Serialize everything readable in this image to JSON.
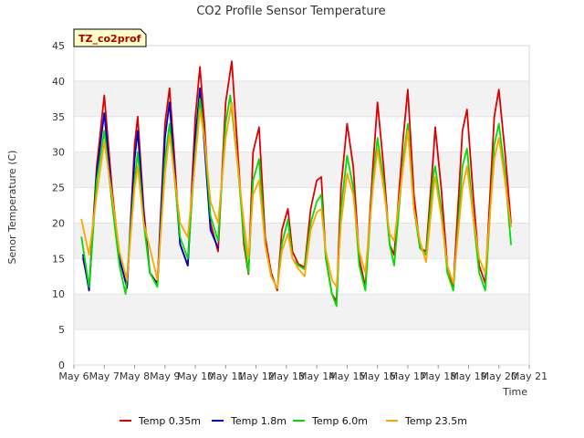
{
  "chart_data": {
    "type": "line",
    "title": "CO2 Profile Sensor Temperature",
    "xlabel": "Time",
    "ylabel": "Senor Temperature (C)",
    "annotation": "TZ_co2prof",
    "xlim": [
      6,
      21
    ],
    "ylim": [
      0,
      45
    ],
    "x_ticks": [
      6,
      7,
      8,
      9,
      10,
      11,
      12,
      13,
      14,
      15,
      16,
      17,
      18,
      19,
      20,
      21
    ],
    "x_tick_labels": [
      "May 6",
      "May 7",
      "May 8",
      "May 9",
      "May 10",
      "May 11",
      "May 12",
      "May 13",
      "May 14",
      "May 15",
      "May 16",
      "May 17",
      "May 18",
      "May 19",
      "May 20",
      "May 21"
    ],
    "y_ticks": [
      0,
      5,
      10,
      15,
      20,
      25,
      30,
      35,
      40,
      45
    ],
    "y_tick_labels": [
      "0",
      "5",
      "10",
      "15",
      "20",
      "25",
      "30",
      "35",
      "40",
      "45"
    ],
    "grid": "horizontal bands",
    "legend_position": "bottom",
    "series": [
      {
        "name": "Temp 0.35m",
        "color": "#dd0000",
        "points": [
          [
            6.3,
            15.0
          ],
          [
            6.5,
            10.8
          ],
          [
            6.75,
            28
          ],
          [
            7.0,
            38.0
          ],
          [
            7.25,
            25
          ],
          [
            7.5,
            15
          ],
          [
            7.75,
            10.8
          ],
          [
            8.0,
            31
          ],
          [
            8.1,
            35.0
          ],
          [
            8.3,
            22
          ],
          [
            8.5,
            13
          ],
          [
            8.75,
            11.5
          ],
          [
            9.0,
            34
          ],
          [
            9.15,
            39.0
          ],
          [
            9.3,
            30
          ],
          [
            9.5,
            17
          ],
          [
            9.75,
            14.0
          ],
          [
            10.0,
            35
          ],
          [
            10.15,
            42.0
          ],
          [
            10.3,
            34
          ],
          [
            10.5,
            20
          ],
          [
            10.75,
            16.0
          ],
          [
            11.0,
            37
          ],
          [
            11.2,
            42.8
          ],
          [
            11.4,
            30
          ],
          [
            11.6,
            17
          ],
          [
            11.75,
            12.8
          ],
          [
            11.9,
            30
          ],
          [
            12.1,
            33.5
          ],
          [
            12.3,
            18
          ],
          [
            12.5,
            13
          ],
          [
            12.7,
            10.5
          ],
          [
            12.85,
            19
          ],
          [
            13.05,
            22
          ],
          [
            13.2,
            16
          ],
          [
            13.4,
            14.2
          ],
          [
            13.6,
            13.8
          ],
          [
            13.8,
            22
          ],
          [
            14.0,
            26
          ],
          [
            14.15,
            26.5
          ],
          [
            14.3,
            15
          ],
          [
            14.5,
            10
          ],
          [
            14.65,
            9.0
          ],
          [
            14.8,
            25
          ],
          [
            15.0,
            34.0
          ],
          [
            15.2,
            28
          ],
          [
            15.4,
            15
          ],
          [
            15.6,
            11.0
          ],
          [
            15.85,
            28
          ],
          [
            16.0,
            37.0
          ],
          [
            16.2,
            28
          ],
          [
            16.4,
            17
          ],
          [
            16.55,
            15.5
          ],
          [
            16.85,
            32
          ],
          [
            17.0,
            38.8
          ],
          [
            17.2,
            24
          ],
          [
            17.4,
            16.5
          ],
          [
            17.6,
            16.0
          ],
          [
            17.85,
            30
          ],
          [
            17.9,
            33.5
          ],
          [
            18.1,
            25
          ],
          [
            18.3,
            14
          ],
          [
            18.5,
            11.0
          ],
          [
            18.8,
            33
          ],
          [
            18.95,
            36.0
          ],
          [
            19.15,
            24
          ],
          [
            19.35,
            14
          ],
          [
            19.55,
            11.5
          ],
          [
            19.85,
            35
          ],
          [
            20.0,
            38.8
          ],
          [
            20.2,
            30
          ],
          [
            20.4,
            20.0
          ]
        ]
      },
      {
        "name": "Temp 1.8m",
        "color": "#0000cc",
        "points": [
          [
            6.3,
            15.5
          ],
          [
            6.5,
            10.5
          ],
          [
            6.75,
            27
          ],
          [
            7.0,
            35.5
          ],
          [
            7.25,
            24
          ],
          [
            7.5,
            15
          ],
          [
            7.75,
            11.0
          ],
          [
            8.0,
            29
          ],
          [
            8.1,
            33.0
          ],
          [
            8.3,
            21
          ],
          [
            8.5,
            13
          ],
          [
            8.75,
            11.3
          ],
          [
            9.0,
            32
          ],
          [
            9.15,
            37.0
          ],
          [
            9.3,
            28
          ],
          [
            9.5,
            17
          ],
          [
            9.75,
            14.0
          ],
          [
            10.0,
            32
          ],
          [
            10.15,
            39.0
          ],
          [
            10.3,
            31
          ],
          [
            10.5,
            19
          ],
          [
            10.75,
            16.5
          ]
        ]
      },
      {
        "name": "Temp 6.0m",
        "color": "#00dd00",
        "points": [
          [
            6.25,
            18.0
          ],
          [
            6.5,
            11.0
          ],
          [
            6.75,
            26
          ],
          [
            7.0,
            33.0
          ],
          [
            7.25,
            23
          ],
          [
            7.5,
            14
          ],
          [
            7.7,
            10.0
          ],
          [
            8.0,
            26
          ],
          [
            8.1,
            30.0
          ],
          [
            8.3,
            20
          ],
          [
            8.5,
            13
          ],
          [
            8.75,
            11.0
          ],
          [
            9.0,
            29
          ],
          [
            9.15,
            34.0
          ],
          [
            9.3,
            27
          ],
          [
            9.5,
            18
          ],
          [
            9.75,
            15.0
          ],
          [
            10.0,
            30
          ],
          [
            10.15,
            37.5
          ],
          [
            10.3,
            32
          ],
          [
            10.5,
            21
          ],
          [
            10.75,
            17.5
          ],
          [
            11.0,
            34
          ],
          [
            11.15,
            38.0
          ],
          [
            11.4,
            28
          ],
          [
            11.6,
            18
          ],
          [
            11.75,
            13.0
          ],
          [
            11.9,
            26
          ],
          [
            12.1,
            29.0
          ],
          [
            12.3,
            17
          ],
          [
            12.5,
            12.5
          ],
          [
            12.7,
            10.8
          ],
          [
            12.85,
            17
          ],
          [
            13.05,
            20.5
          ],
          [
            13.2,
            15
          ],
          [
            13.4,
            14.0
          ],
          [
            13.6,
            13.5
          ],
          [
            13.8,
            20
          ],
          [
            14.0,
            23
          ],
          [
            14.15,
            24.0
          ],
          [
            14.3,
            15
          ],
          [
            14.5,
            10
          ],
          [
            14.65,
            8.3
          ],
          [
            14.8,
            22
          ],
          [
            15.0,
            29.5
          ],
          [
            15.2,
            25
          ],
          [
            15.4,
            14
          ],
          [
            15.6,
            10.5
          ],
          [
            15.85,
            26
          ],
          [
            16.0,
            32.0
          ],
          [
            16.2,
            26
          ],
          [
            16.4,
            17
          ],
          [
            16.55,
            14.0
          ],
          [
            16.85,
            29
          ],
          [
            17.0,
            34.0
          ],
          [
            17.2,
            22
          ],
          [
            17.4,
            16.5
          ],
          [
            17.6,
            15.5
          ],
          [
            17.85,
            27
          ],
          [
            17.9,
            28.0
          ],
          [
            18.1,
            22
          ],
          [
            18.3,
            13
          ],
          [
            18.5,
            10.5
          ],
          [
            18.8,
            28
          ],
          [
            18.95,
            30.5
          ],
          [
            19.15,
            21
          ],
          [
            19.35,
            13
          ],
          [
            19.55,
            10.5
          ],
          [
            19.85,
            31
          ],
          [
            20.0,
            34.0
          ],
          [
            20.2,
            27
          ],
          [
            20.4,
            17.0
          ]
        ]
      },
      {
        "name": "Temp 23.5m",
        "color": "#ffa500",
        "points": [
          [
            6.25,
            20.5
          ],
          [
            6.5,
            15.5
          ],
          [
            6.75,
            24
          ],
          [
            7.0,
            31.5
          ],
          [
            7.25,
            24
          ],
          [
            7.5,
            16
          ],
          [
            7.75,
            12.0
          ],
          [
            8.0,
            25
          ],
          [
            8.1,
            28.0
          ],
          [
            8.3,
            20
          ],
          [
            8.5,
            16.5
          ],
          [
            8.75,
            12.0
          ],
          [
            9.0,
            27
          ],
          [
            9.15,
            32.5
          ],
          [
            9.3,
            27
          ],
          [
            9.5,
            20
          ],
          [
            9.75,
            18.0
          ],
          [
            10.0,
            29
          ],
          [
            10.15,
            36.0
          ],
          [
            10.3,
            32
          ],
          [
            10.5,
            23
          ],
          [
            10.75,
            20.0
          ],
          [
            11.0,
            32
          ],
          [
            11.2,
            37.0
          ],
          [
            11.4,
            28
          ],
          [
            11.6,
            20
          ],
          [
            11.75,
            15.0
          ],
          [
            11.9,
            24
          ],
          [
            12.1,
            26.0
          ],
          [
            12.3,
            17
          ],
          [
            12.5,
            12.5
          ],
          [
            12.7,
            10.8
          ],
          [
            12.85,
            16
          ],
          [
            13.05,
            18.5
          ],
          [
            13.2,
            15
          ],
          [
            13.4,
            13.5
          ],
          [
            13.6,
            12.5
          ],
          [
            13.8,
            19
          ],
          [
            14.0,
            21.5
          ],
          [
            14.15,
            22.0
          ],
          [
            14.3,
            16
          ],
          [
            14.5,
            12
          ],
          [
            14.65,
            11.0
          ],
          [
            14.8,
            20
          ],
          [
            15.0,
            27.0
          ],
          [
            15.2,
            24
          ],
          [
            15.4,
            16
          ],
          [
            15.6,
            13.0
          ],
          [
            15.85,
            25
          ],
          [
            16.0,
            30.5
          ],
          [
            16.2,
            25
          ],
          [
            16.4,
            18.5
          ],
          [
            16.55,
            17.5
          ],
          [
            16.85,
            28
          ],
          [
            17.0,
            33.0
          ],
          [
            17.2,
            22
          ],
          [
            17.4,
            17.5
          ],
          [
            17.6,
            14.5
          ],
          [
            17.85,
            25
          ],
          [
            17.9,
            26.5
          ],
          [
            18.1,
            21
          ],
          [
            18.3,
            14
          ],
          [
            18.5,
            11.5
          ],
          [
            18.8,
            25
          ],
          [
            18.95,
            28.0
          ],
          [
            19.15,
            21
          ],
          [
            19.35,
            15
          ],
          [
            19.55,
            13.0
          ],
          [
            19.85,
            29
          ],
          [
            20.0,
            32.0
          ],
          [
            20.2,
            26
          ],
          [
            20.4,
            19.5
          ]
        ]
      }
    ]
  }
}
